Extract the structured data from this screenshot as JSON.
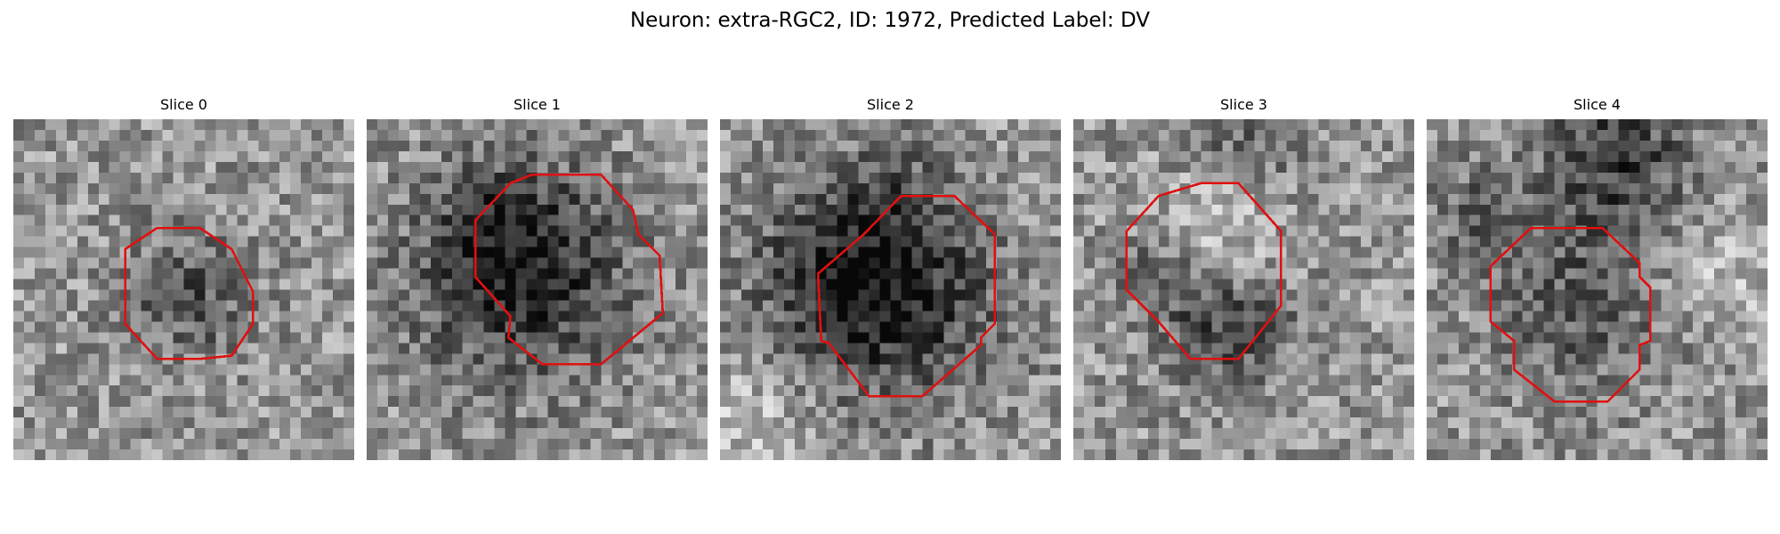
{
  "figure": {
    "title": "Neuron: extra-RGC2, ID: 1972, Predicted Label: DV",
    "slices": [
      {
        "title": "Slice 0"
      },
      {
        "title": "Slice 1"
      },
      {
        "title": "Slice 2"
      },
      {
        "title": "Slice 3"
      },
      {
        "title": "Slice 4"
      }
    ],
    "outline_color": "#e01010",
    "image_colormap": "grayscale"
  }
}
